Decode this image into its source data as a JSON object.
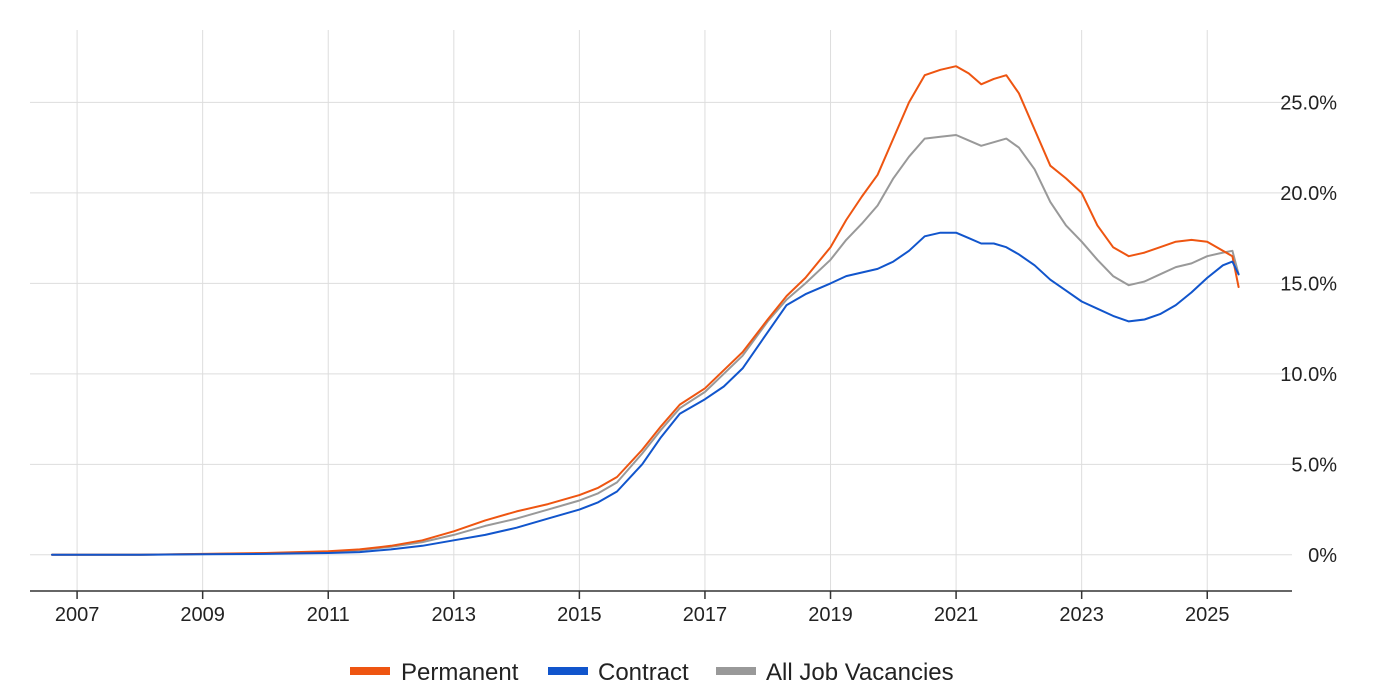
{
  "chart_data": {
    "type": "line",
    "title": "",
    "xlabel": "",
    "ylabel": "",
    "x_range": [
      2006.25,
      2026.35
    ],
    "ylim": [
      -2,
      29
    ],
    "x_ticks": [
      {
        "value": 2007,
        "label": "2007"
      },
      {
        "value": 2009,
        "label": "2009"
      },
      {
        "value": 2011,
        "label": "2011"
      },
      {
        "value": 2013,
        "label": "2013"
      },
      {
        "value": 2015,
        "label": "2015"
      },
      {
        "value": 2017,
        "label": "2017"
      },
      {
        "value": 2019,
        "label": "2019"
      },
      {
        "value": 2021,
        "label": "2021"
      },
      {
        "value": 2023,
        "label": "2023"
      },
      {
        "value": 2025,
        "label": "2025"
      }
    ],
    "y_ticks": [
      {
        "value": 0,
        "label": "0%"
      },
      {
        "value": 5,
        "label": "5.0%"
      },
      {
        "value": 10,
        "label": "10.0%"
      },
      {
        "value": 15,
        "label": "15.0%"
      },
      {
        "value": 20,
        "label": "20.0%"
      },
      {
        "value": 25,
        "label": "25.0%"
      }
    ],
    "grid": true,
    "y_axis_position": "right",
    "legend_position": "bottom",
    "series": [
      {
        "name": "Permanent",
        "color": "#ee5511",
        "x": [
          2006.6,
          2008.0,
          2009.0,
          2010.0,
          2010.5,
          2011.0,
          2011.5,
          2012.0,
          2012.5,
          2013.0,
          2013.5,
          2014.0,
          2014.5,
          2015.0,
          2015.3,
          2015.6,
          2016.0,
          2016.3,
          2016.6,
          2017.0,
          2017.3,
          2017.6,
          2018.0,
          2018.3,
          2018.6,
          2019.0,
          2019.25,
          2019.5,
          2019.75,
          2020.0,
          2020.25,
          2020.5,
          2020.75,
          2021.0,
          2021.2,
          2021.4,
          2021.6,
          2021.8,
          2022.0,
          2022.25,
          2022.5,
          2022.75,
          2023.0,
          2023.25,
          2023.5,
          2023.75,
          2024.0,
          2024.25,
          2024.5,
          2024.75,
          2025.0,
          2025.25,
          2025.4,
          2025.5
        ],
        "y": [
          0,
          0,
          0.05,
          0.1,
          0.15,
          0.2,
          0.3,
          0.5,
          0.8,
          1.3,
          1.9,
          2.4,
          2.8,
          3.3,
          3.7,
          4.3,
          5.8,
          7.1,
          8.3,
          9.2,
          10.2,
          11.2,
          13.0,
          14.3,
          15.3,
          17.0,
          18.5,
          19.8,
          21.0,
          23.0,
          25.0,
          26.5,
          26.8,
          27.0,
          26.6,
          26.0,
          26.3,
          26.5,
          25.5,
          23.5,
          21.5,
          20.8,
          20.0,
          18.2,
          17.0,
          16.5,
          16.7,
          17.0,
          17.3,
          17.4,
          17.3,
          16.8,
          16.5,
          14.8
        ]
      },
      {
        "name": "Contract",
        "color": "#1155cc",
        "x": [
          2006.6,
          2008.0,
          2009.0,
          2010.0,
          2010.5,
          2011.0,
          2011.5,
          2012.0,
          2012.5,
          2013.0,
          2013.5,
          2014.0,
          2014.5,
          2015.0,
          2015.3,
          2015.6,
          2016.0,
          2016.3,
          2016.6,
          2017.0,
          2017.3,
          2017.6,
          2018.0,
          2018.3,
          2018.6,
          2019.0,
          2019.25,
          2019.5,
          2019.75,
          2020.0,
          2020.25,
          2020.5,
          2020.75,
          2021.0,
          2021.2,
          2021.4,
          2021.6,
          2021.8,
          2022.0,
          2022.25,
          2022.5,
          2022.75,
          2023.0,
          2023.25,
          2023.5,
          2023.75,
          2024.0,
          2024.25,
          2024.5,
          2024.75,
          2025.0,
          2025.25,
          2025.4,
          2025.5
        ],
        "y": [
          0,
          0,
          0.03,
          0.05,
          0.08,
          0.1,
          0.15,
          0.3,
          0.5,
          0.8,
          1.1,
          1.5,
          2.0,
          2.5,
          2.9,
          3.5,
          5.0,
          6.5,
          7.8,
          8.6,
          9.3,
          10.3,
          12.3,
          13.8,
          14.4,
          15.0,
          15.4,
          15.6,
          15.8,
          16.2,
          16.8,
          17.6,
          17.8,
          17.8,
          17.5,
          17.2,
          17.2,
          17.0,
          16.6,
          16.0,
          15.2,
          14.6,
          14.0,
          13.6,
          13.2,
          12.9,
          13.0,
          13.3,
          13.8,
          14.5,
          15.3,
          16.0,
          16.2,
          15.5
        ]
      },
      {
        "name": "All Job Vacancies",
        "color": "#999999",
        "x": [
          2006.6,
          2008.0,
          2009.0,
          2010.0,
          2010.5,
          2011.0,
          2011.5,
          2012.0,
          2012.5,
          2013.0,
          2013.5,
          2014.0,
          2014.5,
          2015.0,
          2015.3,
          2015.6,
          2016.0,
          2016.3,
          2016.6,
          2017.0,
          2017.3,
          2017.6,
          2018.0,
          2018.3,
          2018.6,
          2019.0,
          2019.25,
          2019.5,
          2019.75,
          2020.0,
          2020.25,
          2020.5,
          2020.75,
          2021.0,
          2021.2,
          2021.4,
          2021.6,
          2021.8,
          2022.0,
          2022.25,
          2022.5,
          2022.75,
          2023.0,
          2023.25,
          2023.5,
          2023.75,
          2024.0,
          2024.25,
          2024.5,
          2024.75,
          2025.0,
          2025.25,
          2025.4,
          2025.5
        ],
        "y": [
          0,
          0,
          0.04,
          0.08,
          0.12,
          0.17,
          0.25,
          0.45,
          0.7,
          1.1,
          1.6,
          2.0,
          2.5,
          3.0,
          3.4,
          4.0,
          5.6,
          6.9,
          8.1,
          9.0,
          10.0,
          11.0,
          12.9,
          14.1,
          15.0,
          16.3,
          17.4,
          18.3,
          19.3,
          20.8,
          22.0,
          23.0,
          23.1,
          23.2,
          22.9,
          22.6,
          22.8,
          23.0,
          22.5,
          21.3,
          19.5,
          18.2,
          17.3,
          16.3,
          15.4,
          14.9,
          15.1,
          15.5,
          15.9,
          16.1,
          16.5,
          16.7,
          16.8,
          15.5
        ]
      }
    ]
  }
}
